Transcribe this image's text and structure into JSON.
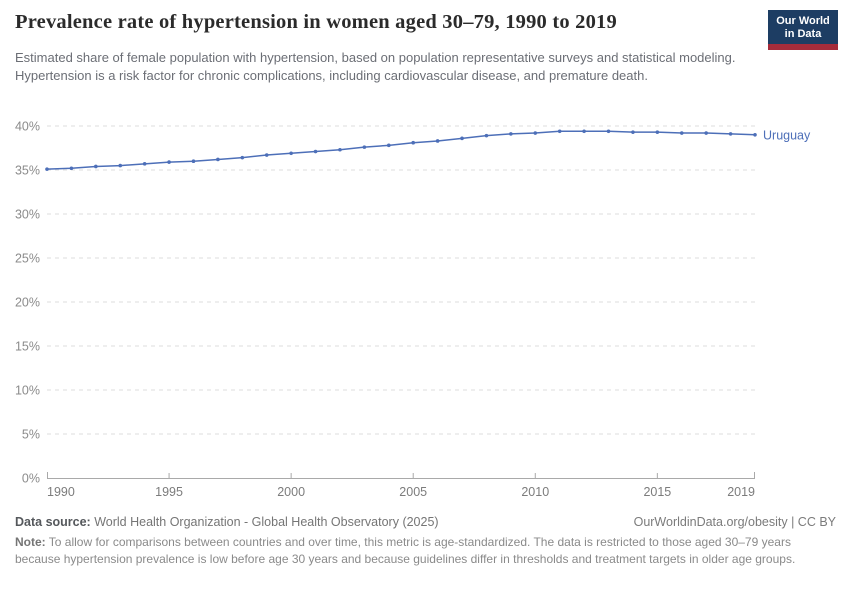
{
  "header": {
    "title": "Prevalence rate of hypertension in women aged 30–79, 1990 to 2019",
    "subtitle": "Estimated share of female population with hypertension, based on population representative surveys and statistical modeling. Hypertension is a risk factor for chronic complications, including cardiovascular disease, and premature death.",
    "logo": {
      "line1": "Our World",
      "line2": "in Data",
      "bg_color": "#1d3d63",
      "accent_color": "#a52c3b"
    }
  },
  "chart_data": {
    "type": "line",
    "title": "Prevalence rate of hypertension in women aged 30–79, 1990 to 2019",
    "x": [
      1990,
      1991,
      1992,
      1993,
      1994,
      1995,
      1996,
      1997,
      1998,
      1999,
      2000,
      2001,
      2002,
      2003,
      2004,
      2005,
      2006,
      2007,
      2008,
      2009,
      2010,
      2011,
      2012,
      2013,
      2014,
      2015,
      2016,
      2017,
      2018,
      2019
    ],
    "series": [
      {
        "name": "Uruguay",
        "color": "#4d6fb8",
        "values": [
          35.1,
          35.2,
          35.4,
          35.5,
          35.7,
          35.9,
          36.0,
          36.2,
          36.4,
          36.7,
          36.9,
          37.1,
          37.3,
          37.6,
          37.8,
          38.1,
          38.3,
          38.6,
          38.9,
          39.1,
          39.2,
          39.4,
          39.4,
          39.4,
          39.3,
          39.3,
          39.2,
          39.2,
          39.1,
          39.0
        ]
      }
    ],
    "xlabel": "",
    "ylabel": "",
    "ylim": [
      0,
      40
    ],
    "yticks": [
      0,
      5,
      10,
      15,
      20,
      25,
      30,
      35,
      40
    ],
    "ytick_suffix": "%",
    "xticks": [
      1990,
      1995,
      2000,
      2005,
      2010,
      2015,
      2019
    ],
    "grid": "horizontal-dashed",
    "legend_position": "end-of-line-label",
    "gridline_color": "#dcdcdc",
    "axis_color": "#a9a9a9",
    "ytick_label_color": "#8b8b8b",
    "xtick_label_color": "#7c7c7c"
  },
  "footer": {
    "datasource_label": "Data source:",
    "datasource": " World Health Organization - Global Health Observatory (2025)",
    "attribution": "OurWorldinData.org/obesity | CC BY",
    "note_label": "Note:",
    "note": " To allow for comparisons between countries and over time, this metric is age-standardized. The data is restricted to those aged 30–79 years because hypertension prevalence is low before age 30 years and because guidelines differ in thresholds and treatment targets in older age groups."
  }
}
